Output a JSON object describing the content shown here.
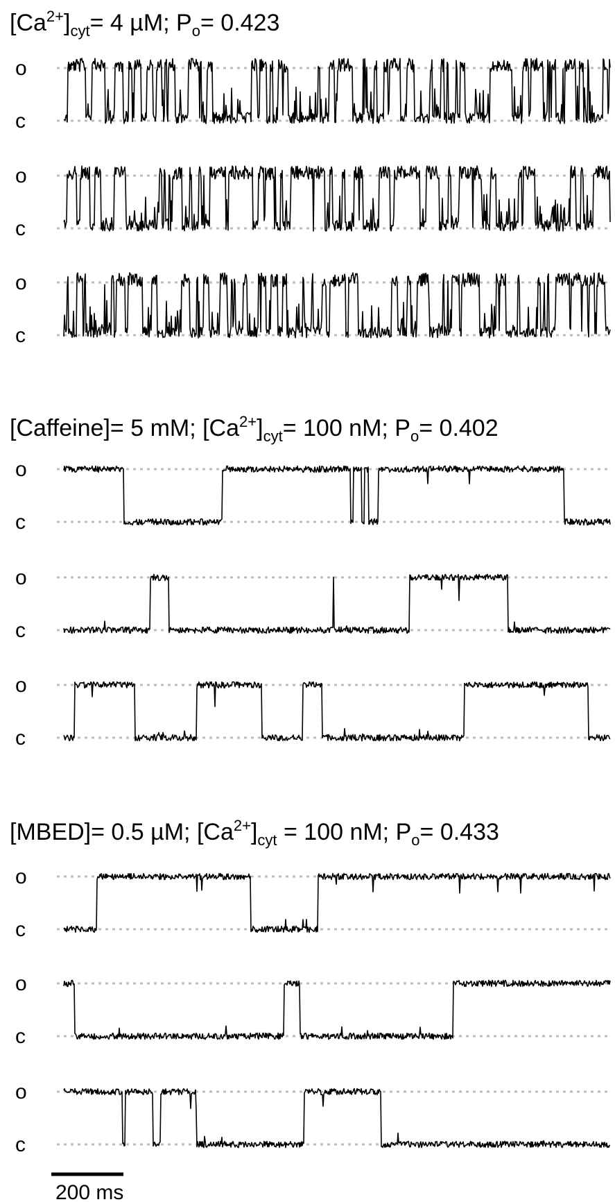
{
  "chart_data": [
    {
      "type": "line",
      "title_parts": {
        "a": "[Ca",
        "a_sup": "2+",
        "b": "]",
        "b_sub": "cyt",
        "c": "= 4 µM; P",
        "c_sub": "o",
        "d": "=  0.423"
      },
      "state_open_label": "o",
      "state_closed_label": "c",
      "gating": "flicker",
      "open_probability": 0.423,
      "sweeps": [
        {
          "transitions_ms": []
        },
        {
          "transitions_ms": []
        },
        {
          "transitions_ms": []
        }
      ]
    },
    {
      "type": "line",
      "title_parts": {
        "a": "[Caffeine]= 5 mM; [Ca",
        "a_sup": "2+",
        "b": "]",
        "b_sub": "cyt",
        "c": "= 100 nM;  P",
        "c_sub": "o",
        "d": "=  0.402"
      },
      "state_open_label": "o",
      "state_closed_label": "c",
      "gating": "bursts",
      "open_probability": 0.402,
      "sweeps": [
        {
          "start_open": true,
          "transitions_ms": [
            220,
            580,
            1050,
            1060,
            1090,
            1100,
            1115,
            1150,
            1830
          ]
        },
        {
          "start_open": false,
          "transitions_ms": [
            315,
            385,
            985,
            988,
            1265,
            1625
          ]
        },
        {
          "start_open": false,
          "transitions_ms": [
            40,
            260,
            485,
            725,
            875,
            945,
            1465,
            1920
          ]
        }
      ]
    },
    {
      "type": "line",
      "title_parts": {
        "a": "[MBED]= 0.5 µM; [Ca",
        "a_sup": "2+",
        "b": "]",
        "b_sub": "cyt",
        "c": " = 100 nM; P",
        "c_sub": "o",
        "d": "=  0.433"
      },
      "state_open_label": "o",
      "state_closed_label": "c",
      "gating": "bursts",
      "open_probability": 0.433,
      "sweeps": [
        {
          "start_open": false,
          "transitions_ms": [
            120,
            685,
            930
          ]
        },
        {
          "start_open": true,
          "transitions_ms": [
            40,
            805,
            865,
            1425
          ]
        },
        {
          "start_open": true,
          "transitions_ms": [
            215,
            224,
            325,
            355,
            485,
            880,
            1160
          ]
        }
      ]
    }
  ],
  "sweep_duration_ms": 2000,
  "scale_bar": {
    "label": "200 ms",
    "duration_ms": 200
  }
}
